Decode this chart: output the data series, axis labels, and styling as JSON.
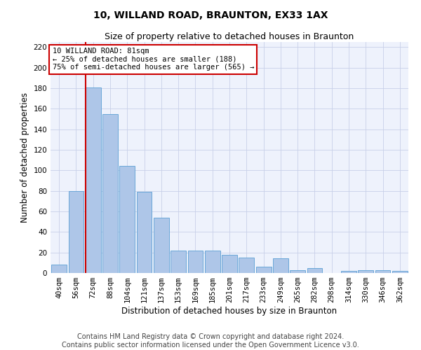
{
  "title": "10, WILLAND ROAD, BRAUNTON, EX33 1AX",
  "subtitle": "Size of property relative to detached houses in Braunton",
  "xlabel": "Distribution of detached houses by size in Braunton",
  "ylabel": "Number of detached properties",
  "footer1": "Contains HM Land Registry data © Crown copyright and database right 2024.",
  "footer2": "Contains public sector information licensed under the Open Government Licence v3.0.",
  "bar_labels": [
    "40sqm",
    "56sqm",
    "72sqm",
    "88sqm",
    "104sqm",
    "121sqm",
    "137sqm",
    "153sqm",
    "169sqm",
    "185sqm",
    "201sqm",
    "217sqm",
    "233sqm",
    "249sqm",
    "265sqm",
    "282sqm",
    "298sqm",
    "314sqm",
    "330sqm",
    "346sqm",
    "362sqm"
  ],
  "bar_values": [
    8,
    80,
    181,
    155,
    104,
    79,
    54,
    22,
    22,
    22,
    18,
    15,
    6,
    14,
    3,
    5,
    0,
    2,
    3,
    3,
    2
  ],
  "bar_color": "#aec6e8",
  "bar_edge_color": "#5a9fd4",
  "annotation_line0": "10 WILLAND ROAD: 81sqm",
  "annotation_line1": "← 25% of detached houses are smaller (188)",
  "annotation_line2": "75% of semi-detached houses are larger (565) →",
  "annotation_box_edgecolor": "#cc0000",
  "red_line_x": 1.575,
  "ylim": [
    0,
    225
  ],
  "yticks": [
    0,
    20,
    40,
    60,
    80,
    100,
    120,
    140,
    160,
    180,
    200,
    220
  ],
  "grid_color": "#c8d0e8",
  "bg_color": "#eef2fc",
  "title_fontsize": 10,
  "subtitle_fontsize": 9,
  "axis_label_fontsize": 8.5,
  "tick_fontsize": 7.5,
  "footer_fontsize": 7
}
